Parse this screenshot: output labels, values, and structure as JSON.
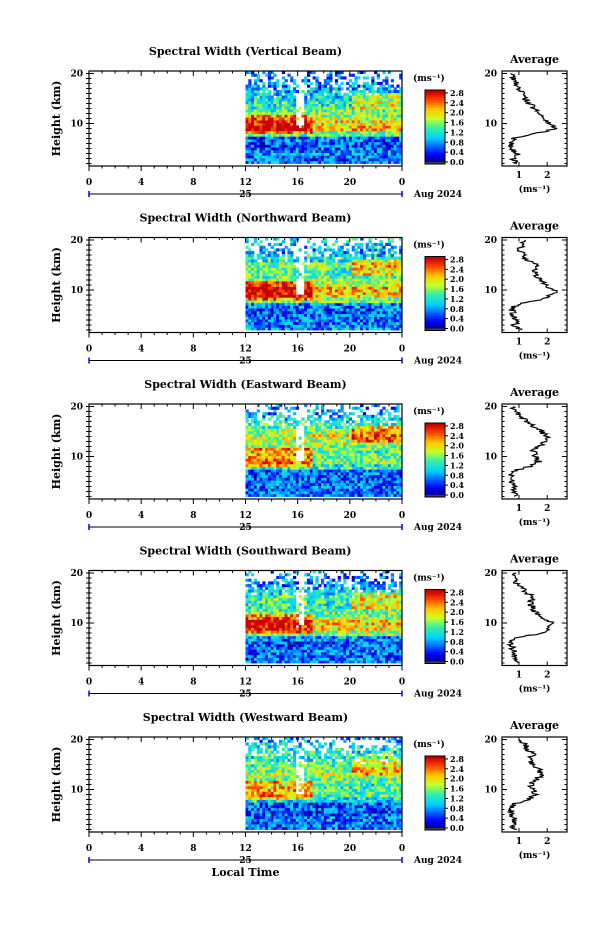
{
  "figure": {
    "xlabel": "Local Time",
    "date_label": "Aug 2024",
    "date_day": "25"
  },
  "chart_data": [
    {
      "type": "heatmap",
      "title": "Spectral Width (Vertical Beam)",
      "ylabel": "Height (km)",
      "x_ticks": [
        "0",
        "4",
        "8",
        "12",
        "16",
        "20",
        "0"
      ],
      "y_ticks": [
        "20",
        "10"
      ],
      "xlim": [
        0,
        24
      ],
      "ylim": [
        1.5,
        20.5
      ],
      "data_start_hour": 12,
      "colorbar": {
        "unit": "(ms⁻¹)",
        "ticks": [
          "2.8",
          "2.4",
          "2.0",
          "1.6",
          "1.2",
          "0.8",
          "0.4",
          "0.0"
        ],
        "range": [
          0,
          3.0
        ]
      },
      "average": {
        "title": "Average",
        "xlabel": "(ms⁻¹)",
        "x_ticks": [
          "1",
          "2"
        ],
        "xlim": [
          0.4,
          2.7
        ],
        "height_km": [
          2,
          3,
          4,
          5,
          6,
          7,
          8,
          9,
          10,
          11,
          12,
          13,
          14,
          15,
          16,
          17,
          18,
          19,
          20
        ],
        "values": [
          0.9,
          0.8,
          0.95,
          0.75,
          0.7,
          0.8,
          1.6,
          2.3,
          2.1,
          1.8,
          1.7,
          1.5,
          1.4,
          1.2,
          1.1,
          1.0,
          0.9,
          0.8,
          0.7
        ]
      }
    },
    {
      "type": "heatmap",
      "title": "Spectral Width (Northward Beam)",
      "ylabel": "Height (km)",
      "x_ticks": [
        "0",
        "4",
        "8",
        "12",
        "16",
        "20",
        "0"
      ],
      "y_ticks": [
        "20",
        "10"
      ],
      "xlim": [
        0,
        24
      ],
      "ylim": [
        1.5,
        20.5
      ],
      "data_start_hour": 12,
      "colorbar": {
        "unit": "(ms⁻¹)",
        "ticks": [
          "2.8",
          "2.4",
          "2.0",
          "1.6",
          "1.2",
          "0.8",
          "0.4",
          "0.0"
        ],
        "range": [
          0,
          3.0
        ]
      },
      "average": {
        "title": "Average",
        "xlabel": "(ms⁻¹)",
        "x_ticks": [
          "1",
          "2"
        ],
        "xlim": [
          0.4,
          2.7
        ],
        "height_km": [
          2,
          3,
          4,
          5,
          6,
          7,
          8,
          9,
          10,
          11,
          12,
          13,
          14,
          15,
          16,
          17,
          18,
          19,
          20
        ],
        "values": [
          1.0,
          0.85,
          0.9,
          0.8,
          0.75,
          0.9,
          1.7,
          2.2,
          2.3,
          1.9,
          1.8,
          1.6,
          1.5,
          1.7,
          1.3,
          1.2,
          1.0,
          1.1,
          1.2
        ]
      }
    },
    {
      "type": "heatmap",
      "title": "Spectral Width (Eastward Beam)",
      "ylabel": "Height (km)",
      "x_ticks": [
        "0",
        "4",
        "8",
        "12",
        "16",
        "20",
        "0"
      ],
      "y_ticks": [
        "20",
        "10"
      ],
      "xlim": [
        0,
        24
      ],
      "ylim": [
        1.5,
        20.5
      ],
      "data_start_hour": 12,
      "colorbar": {
        "unit": "(ms⁻¹)",
        "ticks": [
          "2.8",
          "2.4",
          "2.0",
          "1.6",
          "1.2",
          "0.8",
          "0.4",
          "0.0"
        ],
        "range": [
          0,
          3.0
        ]
      },
      "average": {
        "title": "Average",
        "xlabel": "(ms⁻¹)",
        "x_ticks": [
          "1",
          "2"
        ],
        "xlim": [
          0.4,
          2.7
        ],
        "height_km": [
          2,
          3,
          4,
          5,
          6,
          7,
          8,
          9,
          10,
          11,
          12,
          13,
          14,
          15,
          16,
          17,
          18,
          19,
          20
        ],
        "values": [
          0.9,
          0.8,
          0.85,
          0.75,
          0.7,
          0.8,
          1.4,
          1.7,
          1.6,
          1.5,
          1.7,
          1.9,
          2.0,
          1.8,
          1.5,
          1.3,
          1.1,
          0.9,
          0.8
        ]
      }
    },
    {
      "type": "heatmap",
      "title": "Spectral Width (Southward Beam)",
      "ylabel": "Height (km)",
      "x_ticks": [
        "0",
        "4",
        "8",
        "12",
        "16",
        "20",
        "0"
      ],
      "y_ticks": [
        "20",
        "10"
      ],
      "xlim": [
        0,
        24
      ],
      "ylim": [
        1.5,
        20.5
      ],
      "data_start_hour": 12,
      "colorbar": {
        "unit": "(ms⁻¹)",
        "ticks": [
          "2.8",
          "2.4",
          "2.0",
          "1.6",
          "1.2",
          "0.8",
          "0.4",
          "0.0"
        ],
        "range": [
          0,
          3.0
        ]
      },
      "average": {
        "title": "Average",
        "xlabel": "(ms⁻¹)",
        "x_ticks": [
          "1",
          "2"
        ],
        "xlim": [
          0.4,
          2.7
        ],
        "height_km": [
          2,
          3,
          4,
          5,
          6,
          7,
          8,
          9,
          10,
          11,
          12,
          13,
          14,
          15,
          16,
          17,
          18,
          19,
          20
        ],
        "values": [
          0.9,
          0.8,
          0.85,
          0.75,
          0.7,
          0.9,
          1.8,
          2.1,
          2.2,
          1.9,
          1.6,
          1.5,
          1.4,
          1.5,
          1.3,
          1.1,
          0.9,
          0.8,
          0.9
        ]
      }
    },
    {
      "type": "heatmap",
      "title": "Spectral Width (Westward Beam)",
      "ylabel": "Height (km)",
      "x_ticks": [
        "0",
        "4",
        "8",
        "12",
        "16",
        "20",
        "0"
      ],
      "y_ticks": [
        "20",
        "10"
      ],
      "xlim": [
        0,
        24
      ],
      "ylim": [
        1.5,
        20.5
      ],
      "data_start_hour": 12,
      "colorbar": {
        "unit": "(ms⁻¹)",
        "ticks": [
          "2.8",
          "2.4",
          "2.0",
          "1.6",
          "1.2",
          "0.8",
          "0.4",
          "0.0"
        ],
        "range": [
          0,
          3.0
        ]
      },
      "average": {
        "title": "Average",
        "xlabel": "(ms⁻¹)",
        "x_ticks": [
          "1",
          "2"
        ],
        "xlim": [
          0.4,
          2.7
        ],
        "height_km": [
          2,
          3,
          4,
          5,
          6,
          7,
          8,
          9,
          10,
          11,
          12,
          13,
          14,
          15,
          16,
          17,
          18,
          19,
          20
        ],
        "values": [
          0.85,
          0.8,
          0.85,
          0.75,
          0.7,
          0.8,
          1.3,
          1.6,
          1.5,
          1.4,
          1.6,
          1.8,
          1.7,
          1.5,
          1.4,
          1.5,
          1.3,
          1.2,
          1.0
        ]
      }
    }
  ]
}
